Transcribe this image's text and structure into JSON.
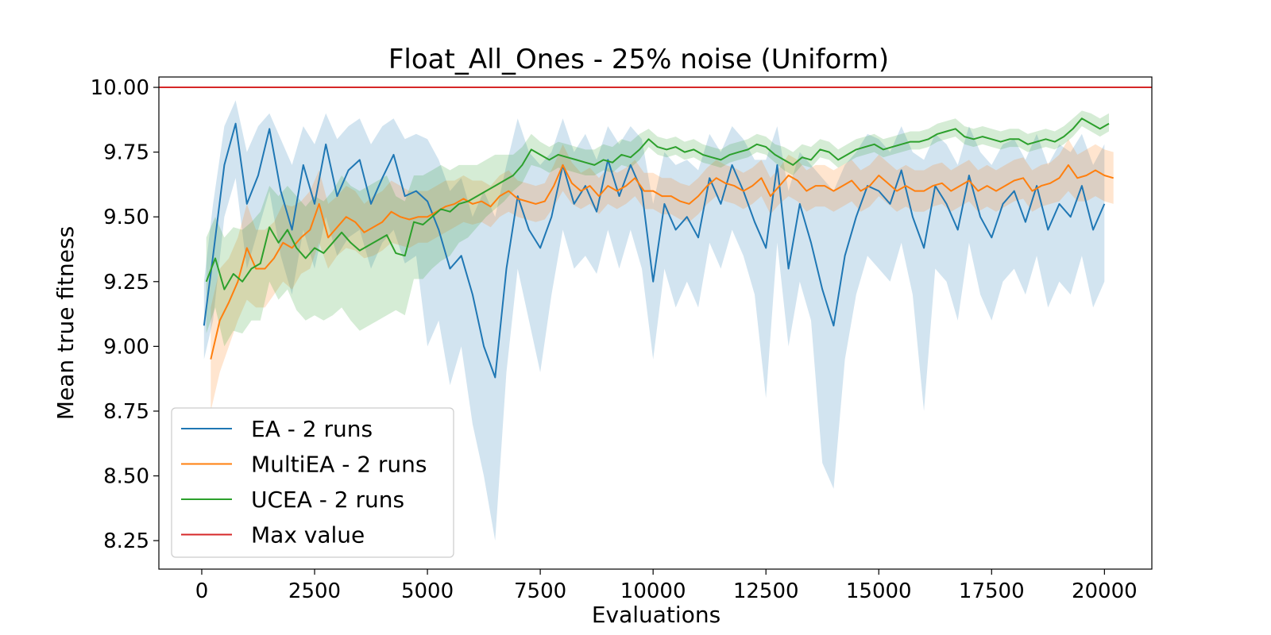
{
  "chart_data": {
    "type": "line",
    "title": "Float_All_Ones - 25% noise (Uniform)",
    "xlabel": "Evaluations",
    "ylabel": "Mean true fitness",
    "xlim": [
      -950,
      21050
    ],
    "ylim": [
      8.14,
      10.04
    ],
    "xticks": [
      0,
      2500,
      5000,
      7500,
      10000,
      12500,
      15000,
      17500,
      20000
    ],
    "yticks": [
      8.25,
      8.5,
      8.75,
      9.0,
      9.25,
      9.5,
      9.75,
      10.0
    ],
    "xtick_labels": [
      "0",
      "2500",
      "5000",
      "7500",
      "10000",
      "12500",
      "15000",
      "17500",
      "20000"
    ],
    "ytick_labels": [
      "8.25",
      "8.50",
      "8.75",
      "9.00",
      "9.25",
      "9.50",
      "9.75",
      "10.00"
    ],
    "grid": false,
    "legend_position": "lower-left",
    "hline": {
      "name": "Max value",
      "y": 10.0,
      "color": "#d62728"
    },
    "series": [
      {
        "name": "EA - 2 runs",
        "color": "#1f77b4",
        "band": true,
        "x": [
          50,
          250,
          500,
          750,
          1000,
          1250,
          1500,
          1750,
          2000,
          2250,
          2500,
          2750,
          3000,
          3250,
          3500,
          3750,
          4000,
          4250,
          4500,
          4750,
          5000,
          5250,
          5500,
          5750,
          6000,
          6250,
          6500,
          6750,
          7000,
          7250,
          7500,
          7750,
          8000,
          8250,
          8500,
          8750,
          9000,
          9250,
          9500,
          9750,
          10000,
          10250,
          10500,
          10750,
          11000,
          11250,
          11500,
          11750,
          12000,
          12250,
          12500,
          12750,
          13000,
          13250,
          13500,
          13750,
          14000,
          14250,
          14500,
          14750,
          15000,
          15250,
          15500,
          15750,
          16000,
          16250,
          16500,
          16750,
          17000,
          17250,
          17500,
          17750,
          18000,
          18250,
          18500,
          18750,
          19000,
          19250,
          19500,
          19750,
          20000
        ],
        "y": [
          9.08,
          9.35,
          9.7,
          9.86,
          9.55,
          9.66,
          9.84,
          9.6,
          9.45,
          9.7,
          9.55,
          9.78,
          9.58,
          9.68,
          9.72,
          9.55,
          9.65,
          9.74,
          9.58,
          9.6,
          9.56,
          9.45,
          9.3,
          9.35,
          9.2,
          9.0,
          8.88,
          9.3,
          9.58,
          9.45,
          9.38,
          9.5,
          9.7,
          9.55,
          9.62,
          9.52,
          9.72,
          9.58,
          9.7,
          9.6,
          9.25,
          9.55,
          9.45,
          9.5,
          9.42,
          9.65,
          9.55,
          9.7,
          9.6,
          9.48,
          9.38,
          9.7,
          9.3,
          9.55,
          9.4,
          9.22,
          9.08,
          9.35,
          9.5,
          9.62,
          9.6,
          9.55,
          9.68,
          9.5,
          9.38,
          9.62,
          9.55,
          9.45,
          9.66,
          9.5,
          9.42,
          9.55,
          9.6,
          9.48,
          9.62,
          9.45,
          9.55,
          9.5,
          9.62,
          9.45,
          9.55
        ],
        "band_lo": [
          8.95,
          9.1,
          9.5,
          9.65,
          9.3,
          9.45,
          9.6,
          9.35,
          9.2,
          9.45,
          9.3,
          9.5,
          9.35,
          9.42,
          9.45,
          9.3,
          9.4,
          9.45,
          9.32,
          9.35,
          9.0,
          9.1,
          8.85,
          9.0,
          8.7,
          8.5,
          8.25,
          8.9,
          9.3,
          9.1,
          8.9,
          9.2,
          9.45,
          9.3,
          9.35,
          9.28,
          9.45,
          9.3,
          9.45,
          9.3,
          8.95,
          9.3,
          9.15,
          9.25,
          9.15,
          9.4,
          9.3,
          9.45,
          9.35,
          9.2,
          8.8,
          9.4,
          9.0,
          9.25,
          9.1,
          8.55,
          8.45,
          8.95,
          9.2,
          9.35,
          9.3,
          9.25,
          9.4,
          9.2,
          8.75,
          9.3,
          9.25,
          9.1,
          9.4,
          9.2,
          9.1,
          9.25,
          9.3,
          9.2,
          9.35,
          9.15,
          9.25,
          9.2,
          9.35,
          9.15,
          9.25
        ],
        "band_hi": [
          9.25,
          9.55,
          9.85,
          9.95,
          9.75,
          9.85,
          9.9,
          9.8,
          9.7,
          9.85,
          9.78,
          9.9,
          9.8,
          9.85,
          9.88,
          9.78,
          9.85,
          9.88,
          9.8,
          9.82,
          9.8,
          9.72,
          9.6,
          9.65,
          9.5,
          9.6,
          9.5,
          9.7,
          9.88,
          9.75,
          9.7,
          9.75,
          9.88,
          9.75,
          9.82,
          9.72,
          9.85,
          9.78,
          9.85,
          9.8,
          9.55,
          9.75,
          9.7,
          9.72,
          9.68,
          9.82,
          9.75,
          9.85,
          9.8,
          9.72,
          9.72,
          9.85,
          9.6,
          9.75,
          9.7,
          9.65,
          9.6,
          9.7,
          9.75,
          9.82,
          9.8,
          9.75,
          9.85,
          9.75,
          9.72,
          9.82,
          9.78,
          9.7,
          9.85,
          9.75,
          9.7,
          9.78,
          9.8,
          9.72,
          9.82,
          9.7,
          9.78,
          9.75,
          9.82,
          9.7,
          9.78
        ]
      },
      {
        "name": "MultiEA - 2 runs",
        "color": "#ff7f0e",
        "band": true,
        "x": [
          200,
          400,
          600,
          800,
          1000,
          1200,
          1400,
          1600,
          1800,
          2000,
          2200,
          2400,
          2600,
          2800,
          3000,
          3200,
          3400,
          3600,
          3800,
          4000,
          4200,
          4400,
          4600,
          4800,
          5000,
          5200,
          5400,
          5600,
          5800,
          6000,
          6200,
          6400,
          6600,
          6800,
          7000,
          7200,
          7400,
          7600,
          7800,
          8000,
          8200,
          8400,
          8600,
          8800,
          9000,
          9200,
          9400,
          9600,
          9800,
          10000,
          10200,
          10400,
          10600,
          10800,
          11000,
          11200,
          11400,
          11600,
          11800,
          12000,
          12200,
          12400,
          12600,
          12800,
          13000,
          13200,
          13400,
          13600,
          13800,
          14000,
          14200,
          14400,
          14600,
          14800,
          15000,
          15200,
          15400,
          15600,
          15800,
          16000,
          16200,
          16400,
          16600,
          16800,
          17000,
          17200,
          17400,
          17600,
          17800,
          18000,
          18200,
          18400,
          18600,
          18800,
          19000,
          19200,
          19400,
          19600,
          19800,
          20000,
          20200
        ],
        "y": [
          8.95,
          9.1,
          9.17,
          9.25,
          9.38,
          9.3,
          9.3,
          9.34,
          9.4,
          9.38,
          9.42,
          9.45,
          9.55,
          9.42,
          9.46,
          9.5,
          9.48,
          9.44,
          9.46,
          9.48,
          9.52,
          9.5,
          9.49,
          9.5,
          9.5,
          9.52,
          9.54,
          9.55,
          9.57,
          9.55,
          9.56,
          9.54,
          9.58,
          9.6,
          9.57,
          9.56,
          9.55,
          9.56,
          9.62,
          9.7,
          9.63,
          9.6,
          9.62,
          9.58,
          9.62,
          9.6,
          9.62,
          9.65,
          9.6,
          9.6,
          9.58,
          9.58,
          9.56,
          9.55,
          9.58,
          9.62,
          9.65,
          9.63,
          9.62,
          9.6,
          9.62,
          9.65,
          9.58,
          9.62,
          9.66,
          9.64,
          9.6,
          9.62,
          9.62,
          9.6,
          9.62,
          9.64,
          9.6,
          9.62,
          9.66,
          9.63,
          9.6,
          9.62,
          9.6,
          9.6,
          9.62,
          9.63,
          9.6,
          9.62,
          9.64,
          9.6,
          9.62,
          9.6,
          9.62,
          9.64,
          9.65,
          9.6,
          9.62,
          9.63,
          9.65,
          9.7,
          9.65,
          9.66,
          9.68,
          9.66,
          9.65
        ],
        "band_lo": [
          8.75,
          8.9,
          9.0,
          9.1,
          9.18,
          9.15,
          9.15,
          9.2,
          9.25,
          9.22,
          9.28,
          9.3,
          9.4,
          9.3,
          9.35,
          9.38,
          9.37,
          9.34,
          9.35,
          9.37,
          9.4,
          9.39,
          9.38,
          9.4,
          9.4,
          9.42,
          9.44,
          9.46,
          9.48,
          9.47,
          9.48,
          9.46,
          9.5,
          9.52,
          9.5,
          9.49,
          9.48,
          9.49,
          9.54,
          9.6,
          9.55,
          9.53,
          9.55,
          9.51,
          9.55,
          9.53,
          9.55,
          9.58,
          9.53,
          9.53,
          9.51,
          9.51,
          9.49,
          9.48,
          9.51,
          9.55,
          9.58,
          9.56,
          9.55,
          9.53,
          9.55,
          9.58,
          9.51,
          9.55,
          9.58,
          9.56,
          9.52,
          9.54,
          9.54,
          9.52,
          9.54,
          9.56,
          9.52,
          9.54,
          9.58,
          9.55,
          9.52,
          9.54,
          9.52,
          9.52,
          9.54,
          9.55,
          9.52,
          9.54,
          9.56,
          9.52,
          9.54,
          9.52,
          9.54,
          9.56,
          9.57,
          9.52,
          9.54,
          9.55,
          9.56,
          9.6,
          9.56,
          9.56,
          9.58,
          9.56,
          9.55
        ],
        "band_hi": [
          9.15,
          9.3,
          9.34,
          9.42,
          9.55,
          9.45,
          9.45,
          9.48,
          9.55,
          9.54,
          9.56,
          9.6,
          9.68,
          9.55,
          9.58,
          9.62,
          9.6,
          9.55,
          9.58,
          9.6,
          9.64,
          9.62,
          9.6,
          9.6,
          9.6,
          9.62,
          9.64,
          9.64,
          9.66,
          9.64,
          9.64,
          9.62,
          9.66,
          9.68,
          9.64,
          9.63,
          9.62,
          9.63,
          9.7,
          9.78,
          9.71,
          9.67,
          9.69,
          9.65,
          9.69,
          9.67,
          9.69,
          9.72,
          9.67,
          9.67,
          9.65,
          9.65,
          9.63,
          9.62,
          9.65,
          9.69,
          9.72,
          9.7,
          9.69,
          9.67,
          9.69,
          9.72,
          9.65,
          9.69,
          9.74,
          9.72,
          9.68,
          9.7,
          9.7,
          9.68,
          9.7,
          9.72,
          9.68,
          9.7,
          9.74,
          9.71,
          9.68,
          9.7,
          9.68,
          9.68,
          9.7,
          9.71,
          9.68,
          9.7,
          9.72,
          9.68,
          9.7,
          9.68,
          9.7,
          9.72,
          9.73,
          9.68,
          9.7,
          9.71,
          9.74,
          9.8,
          9.74,
          9.76,
          9.78,
          9.76,
          9.75
        ]
      },
      {
        "name": "UCEA - 2 runs",
        "color": "#2ca02c",
        "band": true,
        "x": [
          100,
          300,
          500,
          700,
          900,
          1100,
          1300,
          1500,
          1700,
          1900,
          2100,
          2300,
          2500,
          2700,
          2900,
          3100,
          3300,
          3500,
          3700,
          3900,
          4100,
          4300,
          4500,
          4700,
          4900,
          5100,
          5300,
          5500,
          5700,
          5900,
          6100,
          6300,
          6500,
          6700,
          6900,
          7100,
          7300,
          7500,
          7700,
          7900,
          8100,
          8300,
          8500,
          8700,
          8900,
          9100,
          9300,
          9500,
          9700,
          9900,
          10100,
          10300,
          10500,
          10700,
          10900,
          11100,
          11300,
          11500,
          11700,
          11900,
          12100,
          12300,
          12500,
          12700,
          12900,
          13100,
          13300,
          13500,
          13700,
          13900,
          14100,
          14300,
          14500,
          14700,
          14900,
          15100,
          15300,
          15500,
          15700,
          15900,
          16100,
          16300,
          16500,
          16700,
          16900,
          17100,
          17300,
          17500,
          17700,
          17900,
          18100,
          18300,
          18500,
          18700,
          18900,
          19100,
          19300,
          19500,
          19700,
          19900,
          20100
        ],
        "y": [
          9.25,
          9.34,
          9.22,
          9.28,
          9.25,
          9.3,
          9.32,
          9.46,
          9.4,
          9.45,
          9.38,
          9.34,
          9.38,
          9.36,
          9.4,
          9.44,
          9.4,
          9.37,
          9.39,
          9.41,
          9.43,
          9.36,
          9.35,
          9.48,
          9.47,
          9.5,
          9.53,
          9.52,
          9.55,
          9.56,
          9.58,
          9.6,
          9.62,
          9.64,
          9.66,
          9.7,
          9.76,
          9.74,
          9.72,
          9.74,
          9.73,
          9.72,
          9.71,
          9.7,
          9.72,
          9.71,
          9.74,
          9.73,
          9.76,
          9.8,
          9.77,
          9.76,
          9.77,
          9.75,
          9.76,
          9.74,
          9.73,
          9.72,
          9.74,
          9.75,
          9.76,
          9.78,
          9.77,
          9.74,
          9.72,
          9.7,
          9.73,
          9.72,
          9.76,
          9.75,
          9.72,
          9.74,
          9.76,
          9.77,
          9.78,
          9.76,
          9.77,
          9.78,
          9.79,
          9.79,
          9.8,
          9.82,
          9.83,
          9.84,
          9.81,
          9.8,
          9.81,
          9.8,
          9.79,
          9.8,
          9.8,
          9.78,
          9.79,
          9.8,
          9.79,
          9.81,
          9.84,
          9.88,
          9.86,
          9.84,
          9.86
        ],
        "band_lo": [
          9.05,
          9.15,
          9.0,
          9.06,
          9.05,
          9.1,
          9.1,
          9.25,
          9.18,
          9.22,
          9.14,
          9.1,
          9.12,
          9.1,
          9.12,
          9.15,
          9.1,
          9.06,
          9.08,
          9.1,
          9.12,
          9.14,
          9.12,
          9.26,
          9.26,
          9.3,
          9.33,
          9.35,
          9.4,
          9.42,
          9.46,
          9.5,
          9.53,
          9.56,
          9.6,
          9.63,
          9.7,
          9.69,
          9.67,
          9.69,
          9.68,
          9.67,
          9.66,
          9.66,
          9.68,
          9.67,
          9.7,
          9.69,
          9.72,
          9.77,
          9.74,
          9.73,
          9.74,
          9.72,
          9.73,
          9.71,
          9.7,
          9.69,
          9.71,
          9.72,
          9.73,
          9.75,
          9.74,
          9.71,
          9.68,
          9.66,
          9.7,
          9.69,
          9.73,
          9.72,
          9.69,
          9.71,
          9.73,
          9.74,
          9.75,
          9.73,
          9.74,
          9.75,
          9.76,
          9.76,
          9.77,
          9.79,
          9.8,
          9.81,
          9.78,
          9.77,
          9.78,
          9.77,
          9.76,
          9.77,
          9.77,
          9.75,
          9.76,
          9.77,
          9.76,
          9.78,
          9.81,
          9.85,
          9.83,
          9.81,
          9.83
        ],
        "band_hi": [
          9.42,
          9.5,
          9.42,
          9.46,
          9.45,
          9.48,
          9.52,
          9.62,
          9.58,
          9.62,
          9.58,
          9.54,
          9.58,
          9.56,
          9.6,
          9.66,
          9.62,
          9.6,
          9.62,
          9.64,
          9.66,
          9.58,
          9.56,
          9.66,
          9.66,
          9.68,
          9.7,
          9.68,
          9.7,
          9.7,
          9.7,
          9.72,
          9.74,
          9.74,
          9.74,
          9.77,
          9.82,
          9.79,
          9.77,
          9.79,
          9.78,
          9.77,
          9.76,
          9.76,
          9.78,
          9.77,
          9.8,
          9.79,
          9.82,
          9.84,
          9.81,
          9.8,
          9.81,
          9.79,
          9.8,
          9.78,
          9.77,
          9.76,
          9.78,
          9.79,
          9.8,
          9.82,
          9.81,
          9.78,
          9.77,
          9.75,
          9.78,
          9.77,
          9.8,
          9.79,
          9.76,
          9.78,
          9.8,
          9.81,
          9.82,
          9.8,
          9.81,
          9.82,
          9.83,
          9.83,
          9.84,
          9.86,
          9.87,
          9.88,
          9.85,
          9.84,
          9.85,
          9.84,
          9.83,
          9.84,
          9.84,
          9.82,
          9.83,
          9.84,
          9.83,
          9.85,
          9.88,
          9.91,
          9.9,
          9.88,
          9.9
        ]
      }
    ],
    "legend": [
      {
        "label": "EA - 2 runs",
        "color": "#1f77b4"
      },
      {
        "label": "MultiEA - 2 runs",
        "color": "#ff7f0e"
      },
      {
        "label": "UCEA - 2 runs",
        "color": "#2ca02c"
      },
      {
        "label": "Max value",
        "color": "#d62728"
      }
    ]
  }
}
